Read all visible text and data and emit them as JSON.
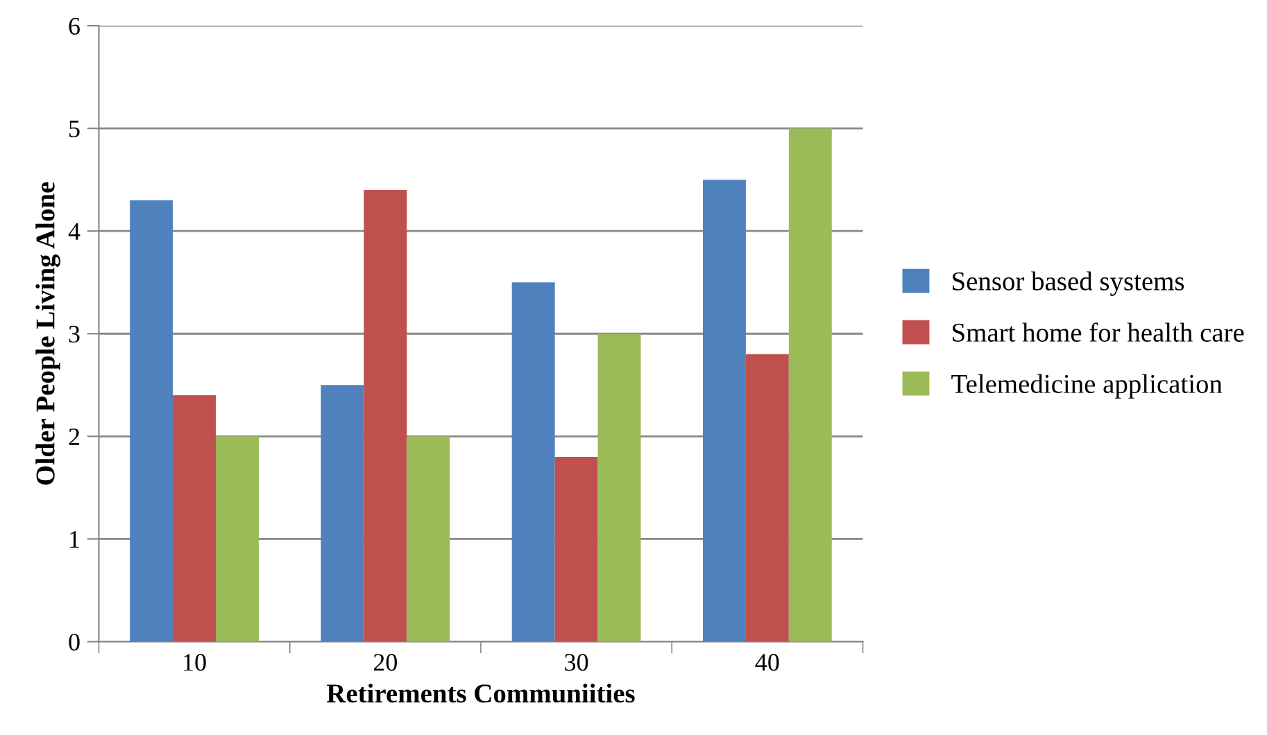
{
  "chart_data": {
    "type": "bar",
    "xlabel": "Retirements Communiities",
    "ylabel": "Older People Living Alone",
    "categories": [
      "10",
      "20",
      "30",
      "40"
    ],
    "series": [
      {
        "name": "Sensor based systems",
        "color": "#4f81bd",
        "values": [
          4.3,
          2.5,
          3.5,
          4.5
        ]
      },
      {
        "name": "Smart home for health care",
        "color": "#c0504d",
        "values": [
          2.4,
          4.4,
          1.8,
          2.8
        ]
      },
      {
        "name": "Telemedicine application",
        "color": "#9bbb59",
        "values": [
          2.0,
          2.0,
          3.0,
          5.0
        ]
      }
    ],
    "ylim": [
      0,
      6
    ],
    "yticks": [
      0,
      1,
      2,
      3,
      4,
      5,
      6
    ],
    "grid": "y",
    "legend": "right"
  }
}
